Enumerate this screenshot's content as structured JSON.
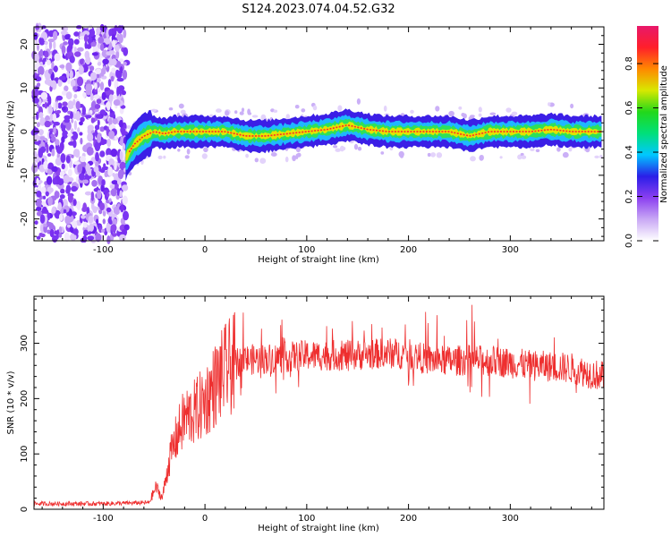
{
  "title": "S124.2023.074.04.52.G32",
  "chart_data": [
    {
      "type": "heatmap",
      "xlabel": "Height of straight line (km)",
      "ylabel": "Frequency (Hz)",
      "xlim": [
        -168,
        392
      ],
      "ylim": [
        -25,
        24
      ],
      "xticks": [
        -100,
        0,
        100,
        200,
        300
      ],
      "yticks": [
        -20,
        -10,
        0,
        10,
        20
      ],
      "noise_region_x": [
        -168,
        -75
      ],
      "signal_start_x": -78,
      "ridge": {
        "x": [
          -78,
          -70,
          -60,
          -50,
          -40,
          -30,
          -20,
          -10,
          0,
          20,
          40,
          60,
          80,
          100,
          120,
          140,
          160,
          180,
          200,
          220,
          240,
          260,
          280,
          300,
          320,
          340,
          360,
          392
        ],
        "y": [
          -6,
          -3,
          -1,
          0,
          -0.5,
          0,
          0,
          0,
          0,
          0,
          -1,
          -1,
          -0.5,
          0,
          0.5,
          1.5,
          0.5,
          0,
          0,
          0,
          0,
          -1,
          0,
          0,
          0,
          0.5,
          0,
          0
        ]
      },
      "colorbar": {
        "label": "Normalized spectral amplitude",
        "ticks": [
          "0.0",
          "0.2",
          "0.4",
          "0.6",
          "0.8"
        ],
        "range": [
          0,
          0.97
        ],
        "colors": [
          "#ffffff",
          "#c9a8f5",
          "#8b3ff0",
          "#2a1ee8",
          "#00c8ff",
          "#00e07a",
          "#22d81a",
          "#d8e800",
          "#ff8800",
          "#ff1f2a",
          "#e8186a"
        ]
      }
    },
    {
      "type": "line",
      "xlabel": "Height of straight line (km)",
      "ylabel": "SNR (10 * v/v)",
      "xlim": [
        -168,
        392
      ],
      "ylim": [
        0,
        385
      ],
      "xticks": [
        -100,
        0,
        100,
        200,
        300
      ],
      "yticks": [
        0,
        100,
        200,
        300
      ],
      "color": "#ee2f2f",
      "envelope": {
        "x": [
          -168,
          -100,
          -55,
          -48,
          -42,
          -35,
          -28,
          -20,
          -10,
          0,
          10,
          20,
          30,
          40,
          60,
          80,
          100,
          120,
          140,
          160,
          180,
          200,
          220,
          240,
          260,
          280,
          300,
          320,
          340,
          360,
          380,
          392
        ],
        "y": [
          10,
          10,
          12,
          40,
          20,
          90,
          130,
          165,
          175,
          195,
          225,
          250,
          265,
          270,
          272,
          275,
          278,
          278,
          278,
          280,
          282,
          280,
          270,
          268,
          270,
          268,
          265,
          260,
          258,
          255,
          245,
          240
        ]
      }
    }
  ]
}
